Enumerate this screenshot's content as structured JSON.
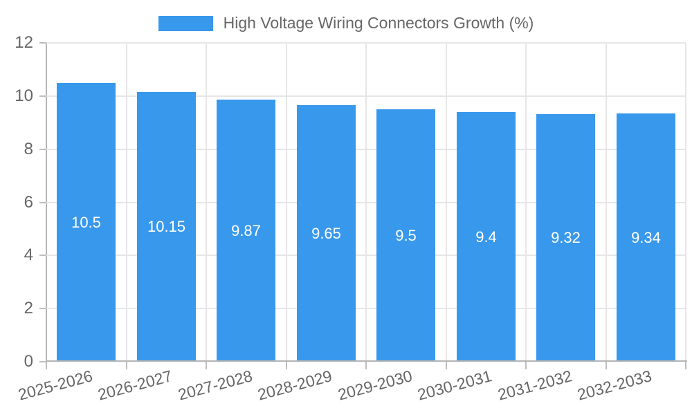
{
  "legend": {
    "label": "High Voltage Wiring Connectors Growth (%)"
  },
  "chart_data": {
    "type": "bar",
    "title": "High Voltage Wiring Connectors Growth (%)",
    "categories": [
      "2025-2026",
      "2026-2027",
      "2027-2028",
      "2028-2029",
      "2029-2030",
      "2030-2031",
      "2031-2032",
      "2032-2033"
    ],
    "values": [
      10.5,
      10.15,
      9.87,
      9.65,
      9.5,
      9.4,
      9.32,
      9.34
    ],
    "value_labels": [
      "10.5",
      "10.15",
      "9.87",
      "9.65",
      "9.5",
      "9.4",
      "9.32",
      "9.34"
    ],
    "xlabel": "",
    "ylabel": "",
    "ylim": [
      0,
      12
    ],
    "yticks": [
      0,
      2,
      4,
      6,
      8,
      10,
      12
    ],
    "grid": true,
    "legend_position": "top",
    "colors": {
      "bar": "#3898EC",
      "bar_label": "#FFFFFF",
      "axis_text": "#666666",
      "grid_light": "#E6E6E6",
      "axis_line": "#B4B4B4",
      "tick_mark": "#BDBDBD",
      "background": "#FFFFFF"
    }
  }
}
